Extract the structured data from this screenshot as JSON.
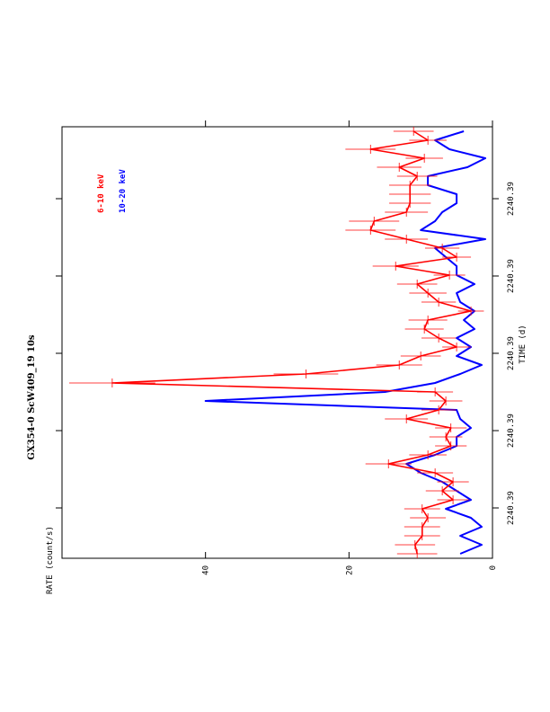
{
  "chart_data": {
    "type": "line",
    "title": "GX354-0 ScW409_19 10s",
    "xlabel": "TIME  (d)",
    "ylabel": "RATE  (count/s)",
    "x_tick_labels": [
      "2240.39",
      "2240.39",
      "2240.39",
      "2240.39",
      "2240.39"
    ],
    "y_ticks": [
      0,
      20,
      40
    ],
    "ylim": [
      0,
      60
    ],
    "n_bins": 48,
    "orientation": "rotated-90",
    "grid": false,
    "legend_position": "top-left",
    "series": [
      {
        "name": "6-10 keV",
        "color": "#ff0000",
        "error_bars": true,
        "values": [
          10.5,
          10.8,
          9.8,
          9.8,
          9.0,
          9.8,
          5.5,
          7.0,
          5.5,
          8.0,
          14.5,
          9.0,
          5.8,
          6.5,
          5.8,
          12.0,
          7.5,
          6.5,
          8.0,
          53.0,
          26.0,
          13.0,
          10.0,
          5.0,
          7.5,
          9.5,
          9.0,
          3.0,
          7.5,
          9.0,
          10.5,
          6.0,
          13.5,
          5.0,
          7.0,
          12.0,
          17.0,
          16.5,
          12.0,
          11.5,
          11.5,
          11.5,
          10.5,
          13.0,
          9.5,
          17.0,
          9.0,
          11.0
        ],
        "errors": [
          2.8,
          2.8,
          2.5,
          2.5,
          2.5,
          2.5,
          2.2,
          2.3,
          2.2,
          2.5,
          3.2,
          2.6,
          2.2,
          2.3,
          2.2,
          3.0,
          2.4,
          2.3,
          2.5,
          6.0,
          4.5,
          3.2,
          2.8,
          2.0,
          2.4,
          2.7,
          2.7,
          1.8,
          2.4,
          2.6,
          2.8,
          2.2,
          3.2,
          2.0,
          2.4,
          3.0,
          3.5,
          3.5,
          3.0,
          2.9,
          2.9,
          2.9,
          2.8,
          3.1,
          2.6,
          3.5,
          2.6,
          2.8
        ]
      },
      {
        "name": "10-20 keV",
        "color": "#0000ff",
        "error_bars": false,
        "values": [
          4.5,
          1.5,
          4.5,
          1.5,
          3.0,
          6.5,
          3.0,
          5.0,
          7.0,
          10.0,
          12.0,
          8.0,
          5.0,
          5.0,
          3.0,
          4.5,
          5.0,
          40.0,
          15.0,
          8.0,
          4.5,
          1.5,
          5.0,
          3.0,
          5.0,
          2.5,
          4.0,
          2.5,
          4.5,
          5.0,
          2.5,
          5.0,
          5.0,
          6.5,
          8.0,
          1.0,
          10.0,
          8.0,
          7.0,
          5.0,
          5.0,
          9.0,
          9.0,
          3.5,
          1.0,
          6.0,
          8.0,
          4.0
        ]
      }
    ]
  }
}
